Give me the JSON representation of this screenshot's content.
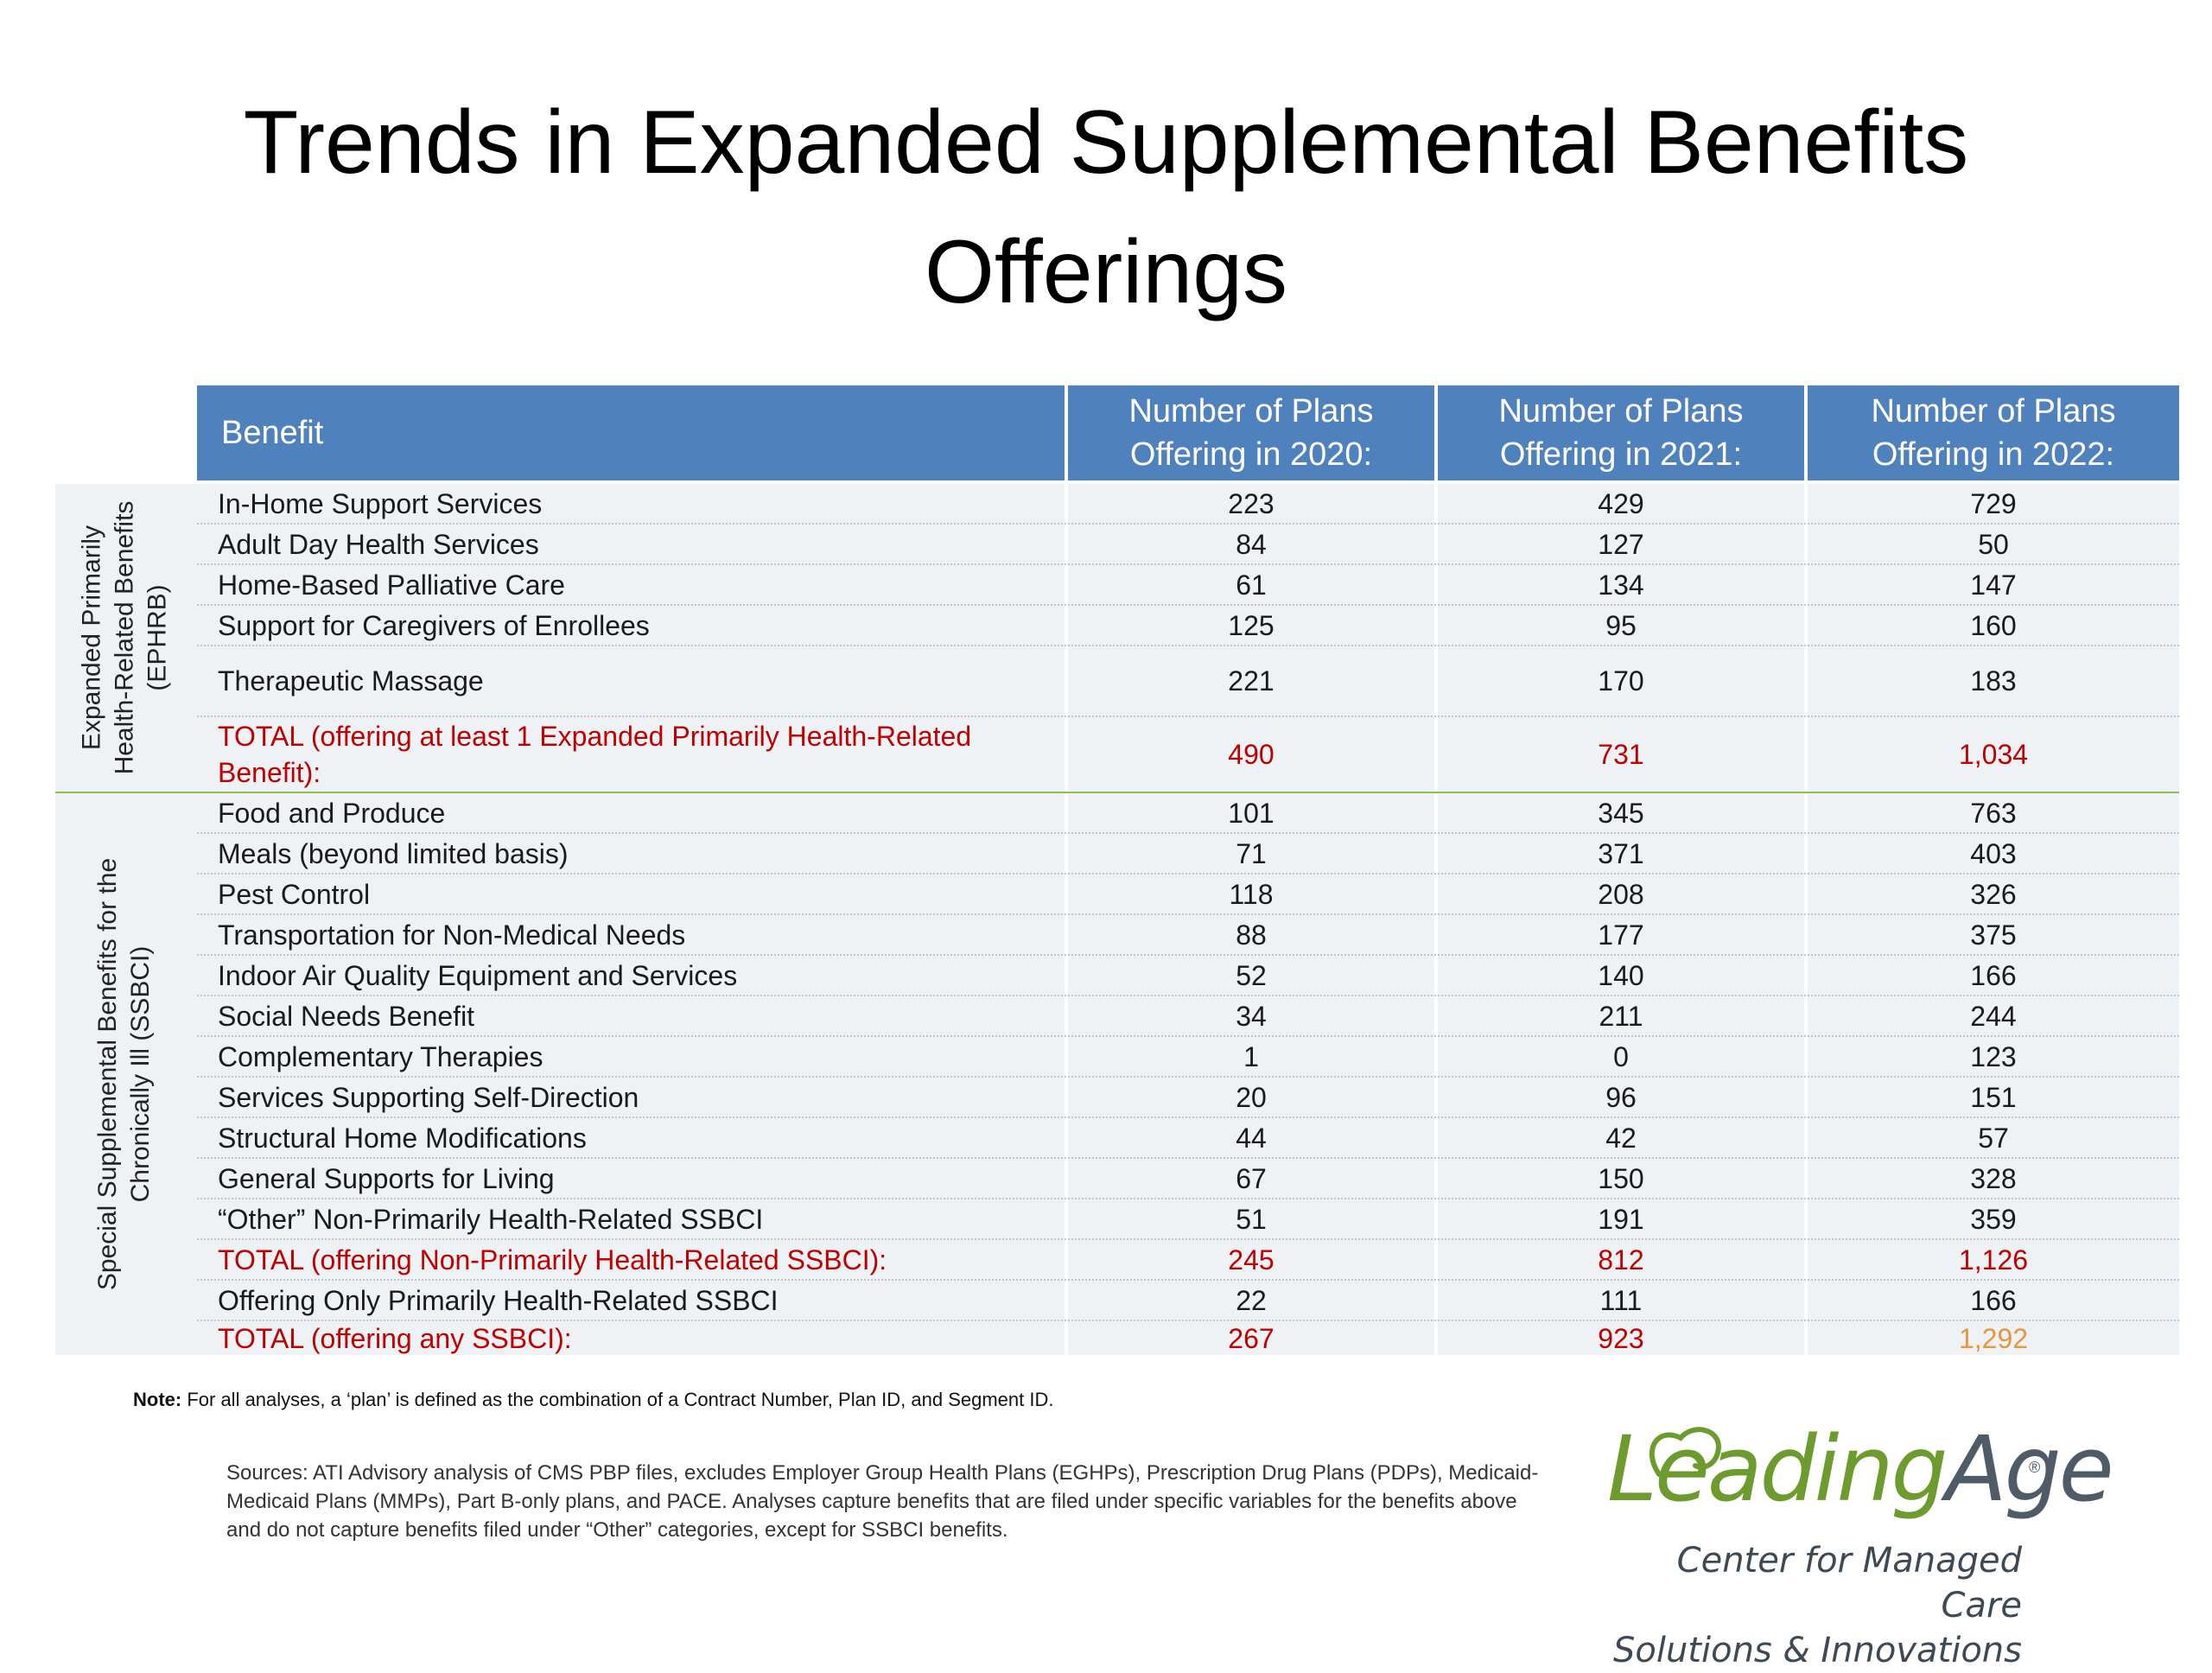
{
  "title": {
    "line1": "Trends in Expanded Supplemental Benefits",
    "line2": "Offerings"
  },
  "table": {
    "header": {
      "benefit": "Benefit",
      "y2020": [
        "Number of Plans",
        "Offering in 2020:"
      ],
      "y2021": [
        "Number of Plans",
        "Offering in 2021:"
      ],
      "y2022": [
        "Number of Plans",
        "Offering in 2022:"
      ]
    },
    "groups": [
      {
        "label": [
          "Expanded Primarily",
          "Health-Related Benefits",
          "(EPHRB)"
        ],
        "rows": [
          {
            "name": "In-Home Support Services",
            "v2020": "223",
            "v2021": "429",
            "v2022": "729"
          },
          {
            "name": "Adult Day Health Services",
            "v2020": "84",
            "v2021": "127",
            "v2022": "50"
          },
          {
            "name": "Home-Based Palliative Care",
            "v2020": "61",
            "v2021": "134",
            "v2022": "147"
          },
          {
            "name": "Support for Caregivers of Enrollees",
            "v2020": "125",
            "v2021": "95",
            "v2022": "160"
          },
          {
            "name": "Therapeutic Massage",
            "v2020": "221",
            "v2021": "170",
            "v2022": "183"
          },
          {
            "name": "TOTAL (offering at least 1 Expanded Primarily Health-Related Benefit):",
            "v2020": "490",
            "v2021": "731",
            "v2022": "1,034",
            "total": true
          }
        ]
      },
      {
        "label": [
          "Special Supplemental Benefits for the",
          "Chronically Ill (SSBCI)"
        ],
        "rows": [
          {
            "name": "Food and Produce",
            "v2020": "101",
            "v2021": "345",
            "v2022": "763"
          },
          {
            "name": "Meals (beyond limited basis)",
            "v2020": "71",
            "v2021": "371",
            "v2022": "403"
          },
          {
            "name": "Pest Control",
            "v2020": "118",
            "v2021": "208",
            "v2022": "326"
          },
          {
            "name": "Transportation for Non-Medical Needs",
            "v2020": "88",
            "v2021": "177",
            "v2022": "375"
          },
          {
            "name": "Indoor Air Quality Equipment and Services",
            "v2020": "52",
            "v2021": "140",
            "v2022": "166"
          },
          {
            "name": "Social Needs Benefit",
            "v2020": "34",
            "v2021": "211",
            "v2022": "244"
          },
          {
            "name": "Complementary Therapies",
            "v2020": "1",
            "v2021": "0",
            "v2022": "123"
          },
          {
            "name": "Services Supporting Self-Direction",
            "v2020": "20",
            "v2021": "96",
            "v2022": "151"
          },
          {
            "name": "Structural Home Modifications",
            "v2020": "44",
            "v2021": "42",
            "v2022": "57"
          },
          {
            "name": "General Supports for Living",
            "v2020": "67",
            "v2021": "150",
            "v2022": "328"
          },
          {
            "name": "“Other” Non-Primarily Health-Related SSBCI",
            "v2020": "51",
            "v2021": "191",
            "v2022": "359"
          },
          {
            "name": "TOTAL (offering Non-Primarily Health-Related SSBCI):",
            "v2020": "245",
            "v2021": "812",
            "v2022": "1,126",
            "total": true
          },
          {
            "name": "Offering Only Primarily Health-Related SSBCI",
            "v2020": "22",
            "v2021": "111",
            "v2022": "166"
          },
          {
            "name": "TOTAL (offering any SSBCI):",
            "v2020": "267",
            "v2021": "923",
            "v2022": "1,292",
            "total": true,
            "highlight2022": "#e8963c"
          }
        ]
      }
    ]
  },
  "note": {
    "label": "Note:",
    "text": " For all analyses, a ‘plan’ is defined as the combination of a Contract Number, Plan ID, and Segment ID."
  },
  "sources": "Sources: ATI Advisory analysis of CMS PBP files, excludes Employer Group Health Plans (EGHPs), Prescription Drug Plans (PDPs), Medicaid-Medicaid Plans (MMPs), Part B-only plans, and PACE. Analyses capture benefits that are filed under specific variables for the benefits above and do not capture benefits filed under “Other” categories, except for SSBCI benefits.",
  "logo": {
    "word_leading": "Leading",
    "word_age": "Age",
    "reg": "®",
    "sub1": "Center for Managed Care",
    "sub2": "Solutions & Innovations",
    "colors": {
      "green": "#6d9b2e",
      "gray": "#4f5b66"
    }
  },
  "colors": {
    "header_bg": "#4f81bd",
    "row_bg": "#eef2f5",
    "total_red": "#c00000",
    "divider_green": "#8fbf5a"
  }
}
